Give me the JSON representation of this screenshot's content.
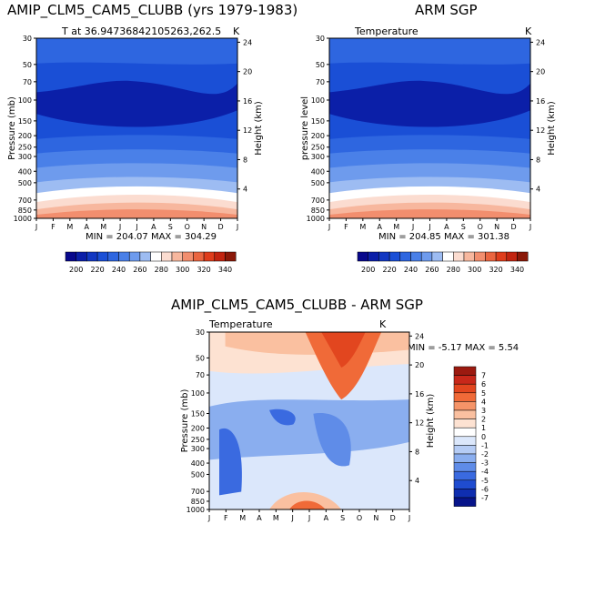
{
  "chart_data": [
    {
      "type": "contour",
      "title": "AMIP_CLM5_CAM5_CLUBB (yrs 1979-1983)",
      "subtitle_left": "T at 36.94736842105263,262.5",
      "subtitle_right": "K",
      "ylabel": "Pressure (mb)",
      "ylabel_right": "Height (km)",
      "months": [
        "J",
        "F",
        "M",
        "A",
        "M",
        "J",
        "J",
        "A",
        "S",
        "O",
        "N",
        "D",
        "J"
      ],
      "pressure_ticks": [
        "30",
        "50",
        "70",
        "100",
        "150",
        "200",
        "250",
        "300",
        "400",
        "500",
        "700",
        "850",
        "1000"
      ],
      "height_ticks": [
        "24",
        "20",
        "16",
        "12",
        "8",
        "4"
      ],
      "stats": "MIN = 204.07  MAX = 304.29",
      "colorbar_labels": [
        "200",
        "220",
        "240",
        "260",
        "280",
        "300",
        "320",
        "340"
      ],
      "colorbar_colors": [
        "#08088c",
        "#0b1fa8",
        "#1238c2",
        "#1a4fd6",
        "#2e66e0",
        "#4a80e8",
        "#6e9bed",
        "#9dbcf2",
        "#ffffff",
        "#fbdcd0",
        "#f7b79e",
        "#f28e6e",
        "#ea6540",
        "#df3d1c",
        "#c22410",
        "#8a1808"
      ]
    },
    {
      "type": "contour",
      "title": "ARM SGP",
      "subtitle_left": "Temperature",
      "subtitle_right": "K",
      "ylabel": "pressure level",
      "ylabel_right": "Height (km)",
      "months": [
        "J",
        "F",
        "M",
        "A",
        "M",
        "J",
        "J",
        "A",
        "S",
        "O",
        "N",
        "D",
        "J"
      ],
      "pressure_ticks": [
        "30",
        "50",
        "70",
        "100",
        "150",
        "200",
        "250",
        "300",
        "400",
        "500",
        "700",
        "850",
        "1000"
      ],
      "height_ticks": [
        "24",
        "20",
        "16",
        "12",
        "8",
        "4"
      ],
      "stats": "MIN = 204.85  MAX = 301.38",
      "colorbar_labels": [
        "200",
        "220",
        "240",
        "260",
        "280",
        "300",
        "320",
        "340"
      ],
      "colorbar_colors": [
        "#08088c",
        "#0b1fa8",
        "#1238c2",
        "#1a4fd6",
        "#2e66e0",
        "#4a80e8",
        "#6e9bed",
        "#9dbcf2",
        "#ffffff",
        "#fbdcd0",
        "#f7b79e",
        "#f28e6e",
        "#ea6540",
        "#df3d1c",
        "#c22410",
        "#8a1808"
      ]
    },
    {
      "type": "contour",
      "title": "AMIP_CLM5_CAM5_CLUBB - ARM SGP",
      "subtitle_left": "Temperature",
      "subtitle_right": "K",
      "ylabel": "Pressure (mb)",
      "ylabel_right": "Height (km)",
      "months": [
        "J",
        "F",
        "M",
        "A",
        "M",
        "J",
        "J",
        "A",
        "S",
        "O",
        "N",
        "D",
        "J"
      ],
      "pressure_ticks": [
        "30",
        "50",
        "70",
        "100",
        "150",
        "200",
        "250",
        "300",
        "400",
        "500",
        "700",
        "850",
        "1000"
      ],
      "height_ticks": [
        "24",
        "20",
        "16",
        "12",
        "8",
        "4"
      ],
      "stats": "MIN =   -5.17  MAX =    5.54",
      "colorbar_labels": [
        "7",
        "6",
        "5",
        "4",
        "3",
        "2",
        "1",
        "0",
        "-1",
        "-2",
        "-3",
        "-4",
        "-5",
        "-6",
        "-7"
      ],
      "colorbar_colors": [
        "#9c1a10",
        "#c8281a",
        "#e2461f",
        "#f06a38",
        "#f59468",
        "#fac0a0",
        "#fde2d2",
        "#ffffff",
        "#dbe7fb",
        "#b5ccf5",
        "#8aaeef",
        "#5f8ce8",
        "#3a6ae0",
        "#1f4cd0",
        "#0f2eb0",
        "#07148a"
      ]
    }
  ]
}
